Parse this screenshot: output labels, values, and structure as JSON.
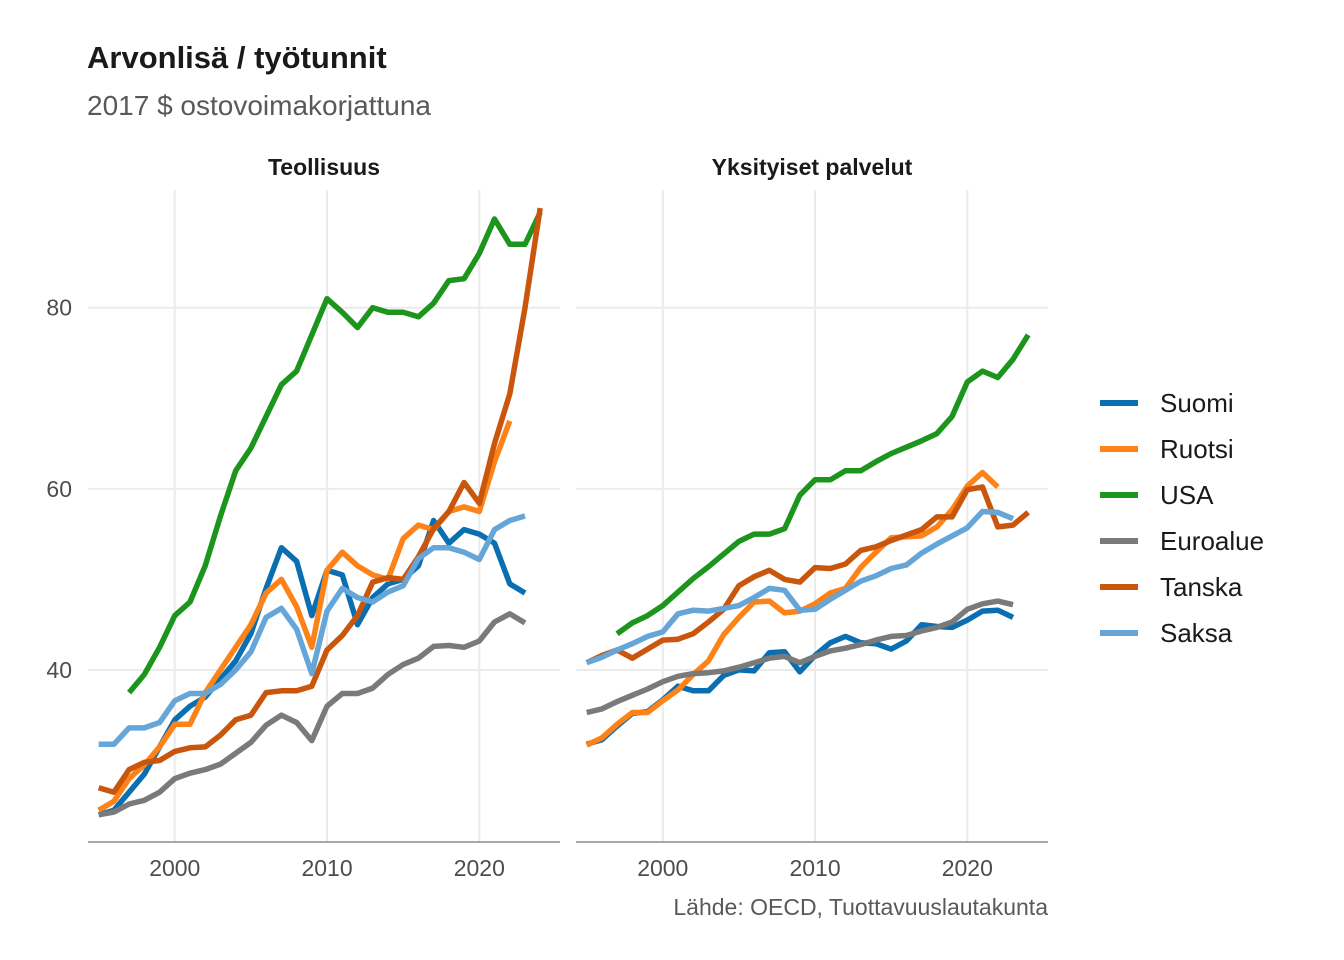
{
  "chart_data": {
    "type": "line",
    "title": "Arvonlisä / työtunnit",
    "subtitle": "2017 $ ostovoimakorjattuna",
    "caption": "Lähde: OECD, Tuottavuuslautakunta",
    "xlabel": "",
    "ylabel": "",
    "xlim": [
      1994.3,
      2025.3
    ],
    "ylim": [
      21,
      93
    ],
    "x_ticks": [
      2000,
      2010,
      2020
    ],
    "y_ticks": [
      40,
      60,
      80
    ],
    "grid": true,
    "legend_position": "right",
    "legend": [
      "Suomi",
      "Ruotsi",
      "USA",
      "Euroalue",
      "Tanska",
      "Saksa"
    ],
    "colors": {
      "Suomi": "#0a6fb0",
      "Ruotsi": "#fd8217",
      "USA": "#1b951b",
      "Euroalue": "#7a7a7a",
      "Tanska": "#c9560c",
      "Saksa": "#65a5d8"
    },
    "panels": [
      {
        "title": "Teollisuus",
        "series": [
          {
            "name": "Suomi",
            "x": [
              1995,
              1996,
              1997,
              1998,
              1999,
              2000,
              2001,
              2002,
              2003,
              2004,
              2005,
              2006,
              2007,
              2008,
              2009,
              2010,
              2011,
              2012,
              2013,
              2014,
              2015,
              2016,
              2017,
              2018,
              2019,
              2020,
              2021,
              2022,
              2023
            ],
            "values": [
              24,
              24.5,
              26.5,
              28.5,
              31.5,
              34.5,
              36,
              37,
              39,
              41,
              44,
              49,
              53.5,
              52,
              46,
              51,
              50.5,
              45,
              48,
              49.5,
              50,
              51.5,
              56.5,
              54,
              55.5,
              55,
              54,
              49.5,
              48.5
            ]
          },
          {
            "name": "Ruotsi",
            "x": [
              1995,
              1996,
              1997,
              1998,
              1999,
              2000,
              2001,
              2002,
              2003,
              2004,
              2005,
              2006,
              2007,
              2008,
              2009,
              2010,
              2011,
              2012,
              2013,
              2014,
              2015,
              2016,
              2017,
              2018,
              2019,
              2020,
              2021,
              2022
            ],
            "values": [
              24.5,
              25.5,
              28,
              29.5,
              31.5,
              34,
              34,
              37.5,
              40,
              42.5,
              45,
              48.5,
              50,
              47,
              42.5,
              51,
              53,
              51.5,
              50.5,
              50,
              54.5,
              56,
              55.5,
              57.5,
              58,
              57.5,
              63,
              67.5
            ]
          },
          {
            "name": "USA",
            "x": [
              1997,
              1998,
              1999,
              2000,
              2001,
              2002,
              2003,
              2004,
              2005,
              2006,
              2007,
              2008,
              2009,
              2010,
              2011,
              2012,
              2013,
              2014,
              2015,
              2016,
              2017,
              2018,
              2019,
              2020,
              2021,
              2022,
              2023,
              2024
            ],
            "values": [
              37.5,
              39.5,
              42.5,
              46,
              47.5,
              51.5,
              57,
              62,
              64.5,
              68,
              71.5,
              73,
              77,
              81,
              79.5,
              77.8,
              80,
              79.5,
              79.5,
              79,
              80.5,
              83,
              83.2,
              86,
              89.8,
              87,
              87,
              90.5
            ]
          },
          {
            "name": "Euroalue",
            "x": [
              1995,
              1996,
              1997,
              1998,
              1999,
              2000,
              2001,
              2002,
              2003,
              2004,
              2005,
              2006,
              2007,
              2008,
              2009,
              2010,
              2011,
              2012,
              2013,
              2014,
              2015,
              2016,
              2017,
              2018,
              2019,
              2020,
              2021,
              2022,
              2023
            ],
            "values": [
              24,
              24.3,
              25.2,
              25.6,
              26.5,
              28,
              28.6,
              29,
              29.6,
              30.8,
              32,
              33.9,
              35,
              34.2,
              32.2,
              36,
              37.4,
              37.4,
              38,
              39.5,
              40.6,
              41.3,
              42.6,
              42.7,
              42.5,
              43.2,
              45.3,
              46.2,
              45.2
            ]
          },
          {
            "name": "Tanska",
            "x": [
              1995,
              1996,
              1997,
              1998,
              1999,
              2000,
              2001,
              2002,
              2003,
              2004,
              2005,
              2006,
              2007,
              2008,
              2009,
              2010,
              2011,
              2012,
              2013,
              2014,
              2015,
              2016,
              2017,
              2018,
              2019,
              2020,
              2021,
              2022,
              2023,
              2024
            ],
            "values": [
              27,
              26.5,
              29,
              29.8,
              30,
              31,
              31.4,
              31.5,
              32.8,
              34.5,
              35,
              37.5,
              37.7,
              37.7,
              38.2,
              42.2,
              43.8,
              46,
              49.7,
              50.2,
              50,
              52.5,
              55.6,
              57.5,
              60.7,
              58.4,
              65,
              70.5,
              80,
              91
            ]
          },
          {
            "name": "Saksa",
            "x": [
              1995,
              1996,
              1997,
              1998,
              1999,
              2000,
              2001,
              2002,
              2003,
              2004,
              2005,
              2006,
              2007,
              2008,
              2009,
              2010,
              2011,
              2012,
              2013,
              2014,
              2015,
              2016,
              2017,
              2018,
              2019,
              2020,
              2021,
              2022,
              2023
            ],
            "values": [
              31.8,
              31.8,
              33.6,
              33.6,
              34.2,
              36.6,
              37.4,
              37.4,
              38.4,
              40,
              42,
              45.8,
              46.8,
              44.5,
              39.6,
              46.5,
              49,
              48,
              47.5,
              48.6,
              49.3,
              52.3,
              53.5,
              53.5,
              53,
              52.2,
              55.5,
              56.5,
              57
            ]
          }
        ]
      },
      {
        "title": "Yksityiset palvelut",
        "series": [
          {
            "name": "Suomi",
            "x": [
              1995,
              1996,
              1997,
              1998,
              1999,
              2000,
              2001,
              2002,
              2003,
              2004,
              2005,
              2006,
              2007,
              2008,
              2009,
              2010,
              2011,
              2012,
              2013,
              2014,
              2015,
              2016,
              2017,
              2018,
              2019,
              2020,
              2021,
              2022,
              2023
            ],
            "values": [
              31.8,
              32.3,
              33.8,
              35.2,
              35.4,
              36.7,
              38.2,
              37.7,
              37.7,
              39.4,
              40,
              39.9,
              41.9,
              42,
              39.8,
              41.6,
              43,
              43.7,
              43,
              42.9,
              42.3,
              43.2,
              45,
              44.8,
              44.7,
              45.5,
              46.5,
              46.6,
              45.8
            ]
          },
          {
            "name": "Ruotsi",
            "x": [
              1995,
              1996,
              1997,
              1998,
              1999,
              2000,
              2001,
              2002,
              2003,
              2004,
              2005,
              2006,
              2007,
              2008,
              2009,
              2010,
              2011,
              2012,
              2013,
              2014,
              2015,
              2016,
              2017,
              2018,
              2019,
              2020,
              2021,
              2022
            ],
            "values": [
              31.7,
              32.5,
              34,
              35.3,
              35.3,
              36.6,
              37.8,
              39.5,
              41,
              43.9,
              45.8,
              47.5,
              47.6,
              46.3,
              46.5,
              47.3,
              48.5,
              49,
              51.3,
              53,
              54.6,
              54.7,
              54.8,
              55.8,
              57.7,
              60.3,
              61.8,
              60.2
            ]
          },
          {
            "name": "USA",
            "x": [
              1997,
              1998,
              1999,
              2000,
              2001,
              2002,
              2003,
              2004,
              2005,
              2006,
              2007,
              2008,
              2009,
              2010,
              2011,
              2012,
              2013,
              2014,
              2015,
              2016,
              2017,
              2018,
              2019,
              2020,
              2021,
              2022,
              2023,
              2024
            ],
            "values": [
              44,
              45.2,
              46,
              47.1,
              48.6,
              50.1,
              51.4,
              52.8,
              54.2,
              55,
              55,
              55.6,
              59.3,
              61,
              61,
              62,
              62,
              63,
              63.9,
              64.6,
              65.3,
              66.1,
              68,
              71.8,
              73,
              72.3,
              74.3,
              77
            ]
          },
          {
            "name": "Euroalue",
            "x": [
              1995,
              1996,
              1997,
              1998,
              1999,
              2000,
              2001,
              2002,
              2003,
              2004,
              2005,
              2006,
              2007,
              2008,
              2009,
              2010,
              2011,
              2012,
              2013,
              2014,
              2015,
              2016,
              2017,
              2018,
              2019,
              2020,
              2021,
              2022,
              2023
            ],
            "values": [
              35.3,
              35.7,
              36.5,
              37.2,
              37.9,
              38.7,
              39.3,
              39.6,
              39.7,
              39.9,
              40.3,
              40.8,
              41.3,
              41.5,
              40.8,
              41.5,
              42.1,
              42.4,
              42.8,
              43.3,
              43.7,
              43.8,
              44.3,
              44.7,
              45.3,
              46.7,
              47.3,
              47.6,
              47.2
            ]
          },
          {
            "name": "Tanska",
            "x": [
              1995,
              1996,
              1997,
              1998,
              1999,
              2000,
              2001,
              2002,
              2003,
              2004,
              2005,
              2006,
              2007,
              2008,
              2009,
              2010,
              2011,
              2012,
              2013,
              2014,
              2015,
              2016,
              2017,
              2018,
              2019,
              2020,
              2021,
              2022,
              2023,
              2024
            ],
            "values": [
              40.8,
              41.6,
              42.2,
              41.3,
              42.3,
              43.3,
              43.4,
              44,
              45.3,
              46.7,
              49.3,
              50.3,
              51,
              50,
              49.7,
              51.3,
              51.2,
              51.7,
              53.2,
              53.6,
              54.3,
              54.9,
              55.5,
              56.9,
              56.9,
              59.9,
              60.2,
              55.8,
              56,
              57.4
            ]
          },
          {
            "name": "Saksa",
            "x": [
              1995,
              1996,
              1997,
              1998,
              1999,
              2000,
              2001,
              2002,
              2003,
              2004,
              2005,
              2006,
              2007,
              2008,
              2009,
              2010,
              2011,
              2012,
              2013,
              2014,
              2015,
              2016,
              2017,
              2018,
              2019,
              2020,
              2021,
              2022,
              2023
            ],
            "values": [
              40.8,
              41.4,
              42.2,
              42.9,
              43.7,
              44.2,
              46.2,
              46.6,
              46.5,
              46.8,
              47.1,
              48,
              49,
              48.8,
              46.6,
              46.7,
              47.8,
              48.8,
              49.8,
              50.4,
              51.2,
              51.6,
              52.9,
              53.9,
              54.8,
              55.7,
              57.5,
              57.4,
              56.7
            ]
          }
        ]
      }
    ]
  }
}
